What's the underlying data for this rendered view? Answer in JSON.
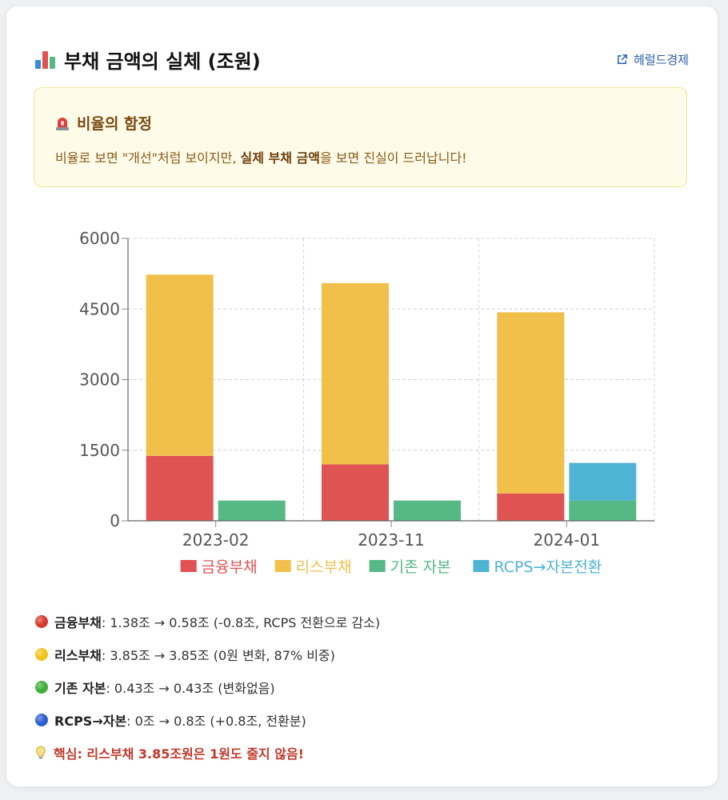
{
  "header": {
    "title": "부채 금액의 실체 (조원)",
    "title_icon": "bar-chart-icon",
    "source_label": "헤럴드경제",
    "source_icon": "external-link-icon"
  },
  "alert": {
    "icon": "siren-icon",
    "title": "비율의 함정",
    "text_prefix": "비율로 보면 \"개선\"처럼 보이지만, ",
    "text_bold": "실제 부채 금액",
    "text_suffix": "을 보면 진실이 드러납니다!"
  },
  "chart_data": {
    "type": "bar",
    "stacked": true,
    "categories": [
      "2023-02",
      "2023-11",
      "2024-01"
    ],
    "series": [
      {
        "name": "금융부채",
        "stack": "debt",
        "color": "#e05353",
        "values": [
          1380,
          1200,
          580
        ]
      },
      {
        "name": "리스부채",
        "stack": "debt",
        "color": "#f0c04b",
        "values": [
          3850,
          3850,
          3850
        ]
      },
      {
        "name": "기존 자본",
        "stack": "equity",
        "color": "#55b885",
        "values": [
          430,
          430,
          430
        ]
      },
      {
        "name": "RCPS→자본전환",
        "stack": "equity",
        "color": "#4fb3d3",
        "values": [
          0,
          0,
          800
        ]
      }
    ],
    "ylim": [
      0,
      6000
    ],
    "yticks": [
      "0",
      "1500",
      "3000",
      "4500",
      "6000"
    ],
    "ytick_values": [
      0,
      1500,
      3000,
      4500,
      6000
    ],
    "grid": true,
    "legend": "bottom"
  },
  "notes": [
    {
      "icon": "red-circle-icon",
      "color": "#d63a2f",
      "label": "금융부채",
      "text": ": 1.38조 → 0.58조 (-0.8조, RCPS 전환으로 감소)"
    },
    {
      "icon": "yellow-circle-icon",
      "color": "#f2c31b",
      "label": "리스부채",
      "text": ": 3.85조 → 3.85조 (0원 변화, 87% 비중)"
    },
    {
      "icon": "green-circle-icon",
      "color": "#3fae3a",
      "label": "기존 자본",
      "text": ": 0.43조 → 0.43조 (변화없음)"
    },
    {
      "icon": "blue-circle-icon",
      "color": "#2b5fd0",
      "label": "RCPS→자본",
      "text": ": 0조 → 0.8조 (+0.8조, 전환분)"
    }
  ],
  "key_note": {
    "icon": "lightbulb-icon",
    "text": "핵심: 리스부채 3.85조원은 1원도 줄지 않음!"
  }
}
